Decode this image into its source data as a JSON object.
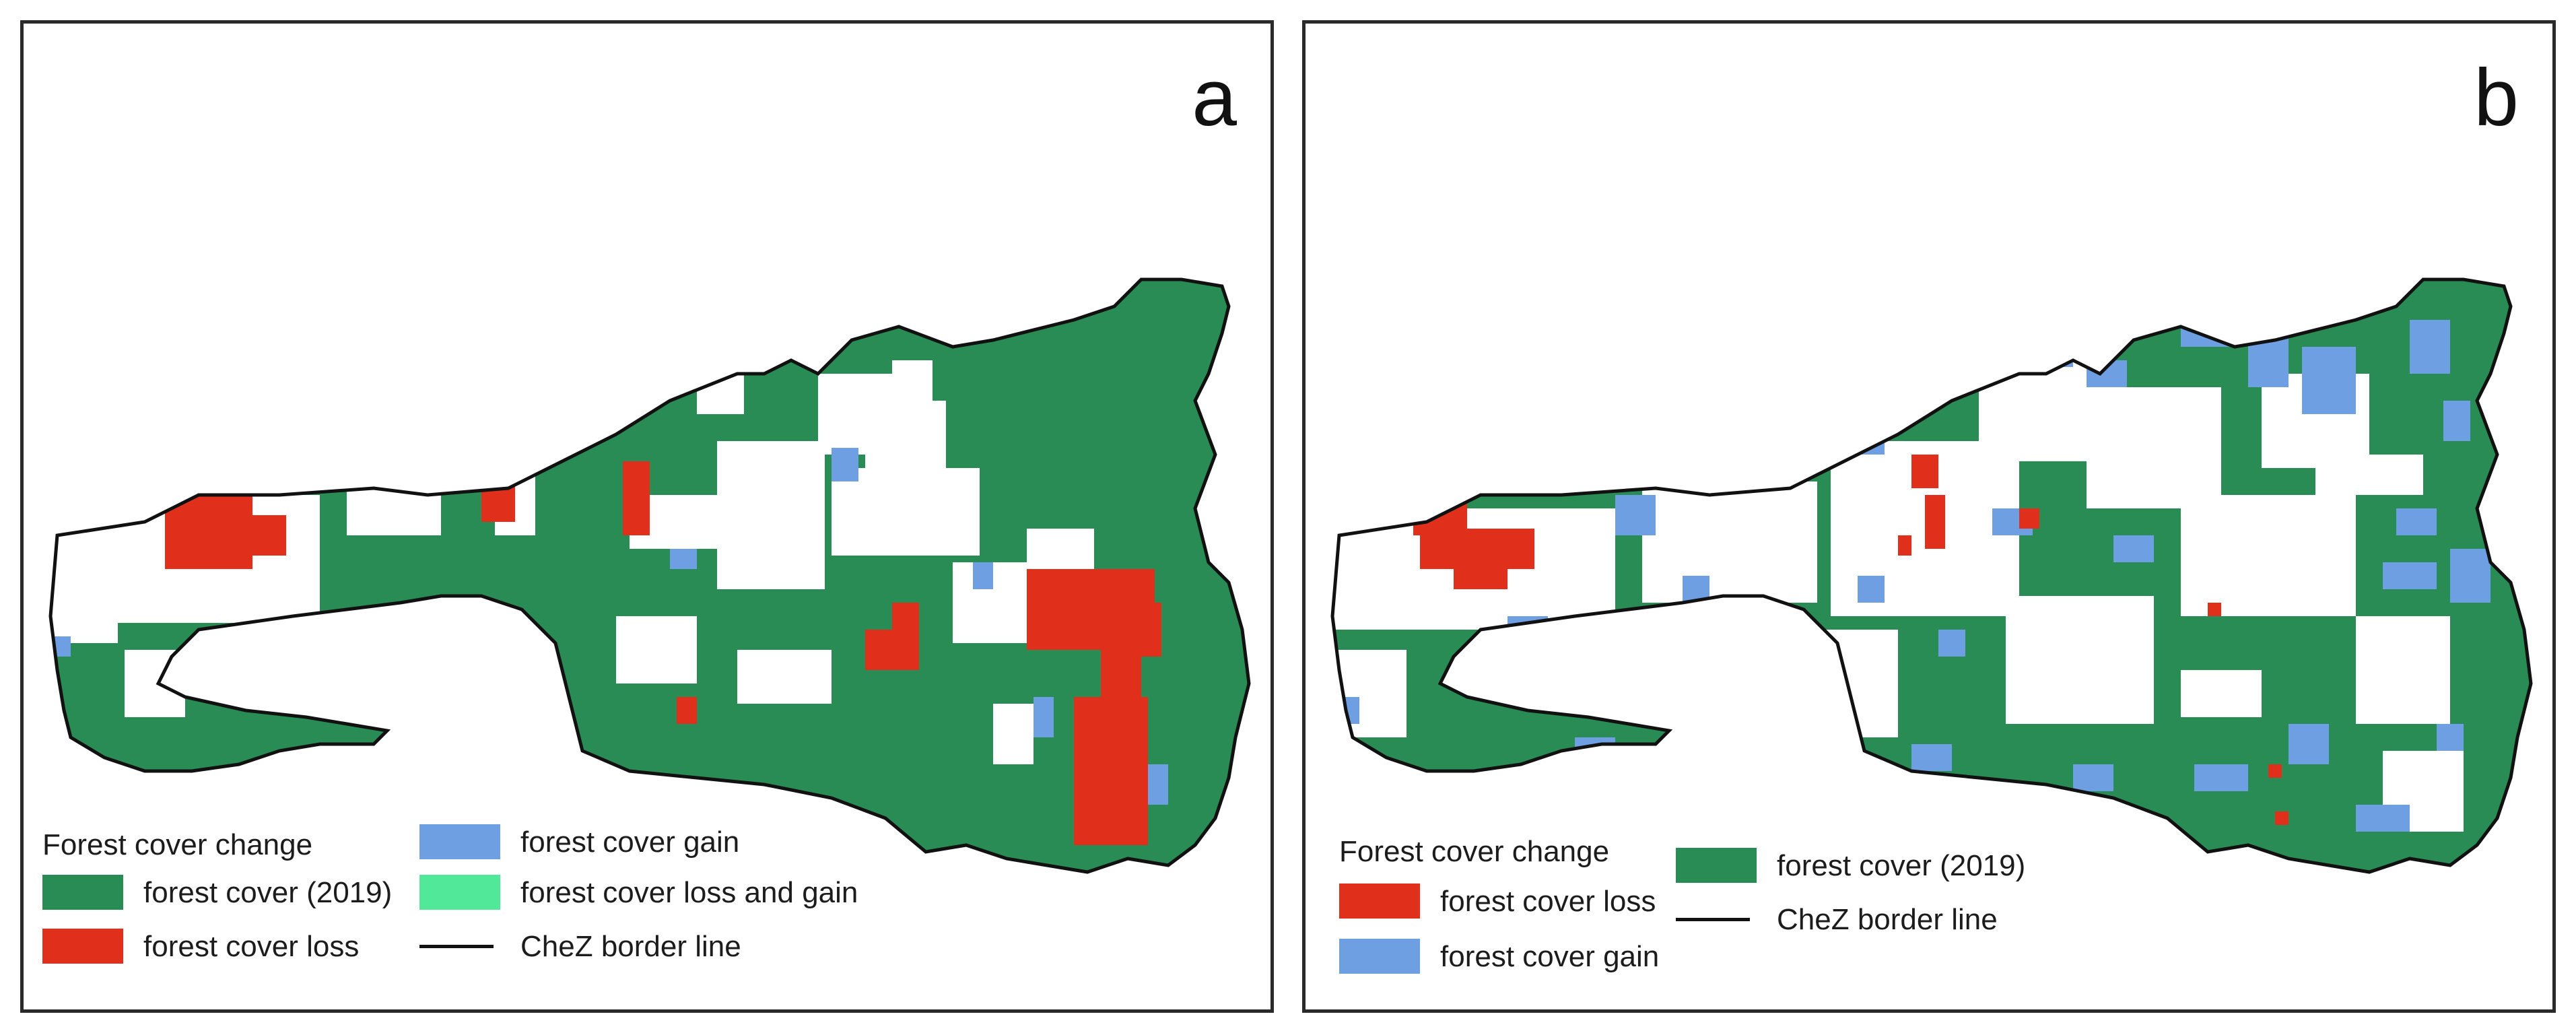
{
  "colors": {
    "forest": "#2a8c55",
    "loss": "#e0301c",
    "gain": "#6f9fe3",
    "loss_and_gain": "#52e89a",
    "border": "#111111",
    "background": "#ffffff"
  },
  "panels": [
    {
      "label": "a",
      "legend_title": "Forest cover change",
      "legend_items": [
        {
          "label": "forest cover (2019)",
          "color": "#2a8c55",
          "kind": "fill"
        },
        {
          "label": "forest cover loss",
          "color": "#e0301c",
          "kind": "fill"
        },
        {
          "label": "forest cover gain",
          "color": "#6f9fe3",
          "kind": "fill"
        },
        {
          "label": "forest cover loss and gain",
          "color": "#52e89a",
          "kind": "fill"
        },
        {
          "label": "CheZ border line",
          "color": "#111111",
          "kind": "line"
        }
      ]
    },
    {
      "label": "b",
      "legend_title": "Forest cover change",
      "legend_items": [
        {
          "label": "forest cover loss",
          "color": "#e0301c",
          "kind": "fill"
        },
        {
          "label": "forest cover gain",
          "color": "#6f9fe3",
          "kind": "fill"
        },
        {
          "label": "forest cover (2019)",
          "color": "#2a8c55",
          "kind": "fill"
        },
        {
          "label": "CheZ border line",
          "color": "#111111",
          "kind": "line"
        }
      ]
    }
  ]
}
